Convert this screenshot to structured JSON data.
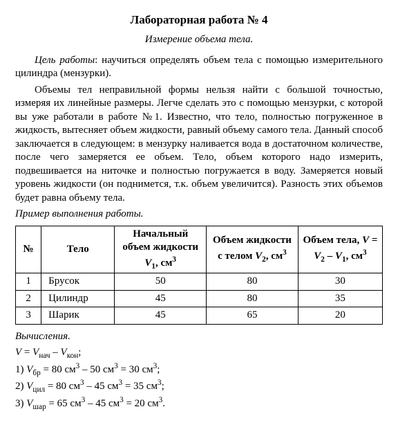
{
  "title": "Лабораторная работа № 4",
  "subtitle": "Измерение объема тела.",
  "goal_label": "Цель работы",
  "goal_text": ": научиться определять объем тела с помощью измерительного цилиндра (мензурки).",
  "body_text": "Объемы тел неправильной формы нельзя найти с большой точностью, измеряя их линейные размеры. Легче сделать это с помощью мензурки, с которой вы уже работали в работе №1. Известно, что тело, полностью погруженное в жидкость, вытесняет объем жидкости, равный объему самого тела. Данный способ заключается в следующем: в мензурку наливается вода в достаточном количестве, после чего замеряется ее объем. Тело, объем которого надо измерить, подвешивается на ниточке и полностью погружается в воду. Замеряется новый уровень жидкости (он поднимется, т.к. объем увеличится). Разность этих объемов будет равна объему тела.",
  "example_label": "Пример выполнения работы.",
  "table": {
    "columns": [
      "№",
      "Тело",
      "Начальный объем жидкости V₁, см³",
      "Объем жидкости с телом V₂, см³",
      "Объем тела, V = V₂ – V₁, см³"
    ],
    "rows": [
      {
        "n": "1",
        "body": "Брусок",
        "v1": "50",
        "v2": "80",
        "v": "30"
      },
      {
        "n": "2",
        "body": "Цилиндр",
        "v1": "45",
        "v2": "80",
        "v": "35"
      },
      {
        "n": "3",
        "body": "Шарик",
        "v1": "45",
        "v2": "65",
        "v": "20"
      }
    ],
    "col_widths": [
      "7%",
      "20%",
      "25%",
      "25%",
      "23%"
    ]
  },
  "calc_label": "Вычисления.",
  "calc_formula_html": "<i>V</i> = <i>V</i><sub>нач</sub> – <i>V</i><sub>кон</sub>;",
  "calc_lines": [
    "1) <i>V</i><sub>бр</sub> = 80 см<sup>3</sup> – 50 см<sup>3</sup> = 30 см<sup>3</sup>;",
    "2) <i>V</i><sub>цил</sub> = 80 см<sup>3</sup> – 45 см<sup>3</sup> = 35 см<sup>3</sup>;",
    "3) <i>V</i><sub>шар</sub> = 65 см<sup>3</sup> – 45 см<sup>3</sup> = 20 см<sup>3</sup>."
  ]
}
